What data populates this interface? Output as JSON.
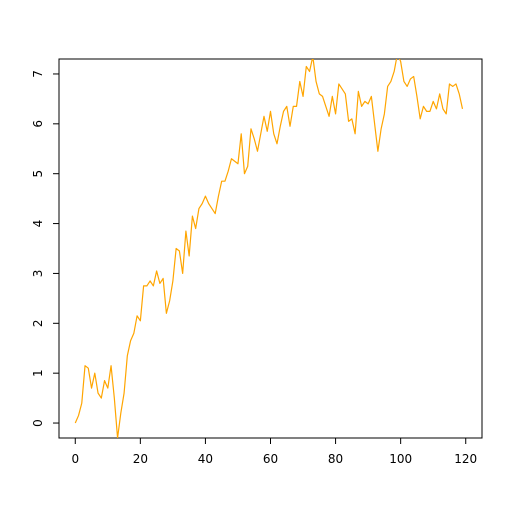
{
  "chart_data": {
    "type": "line",
    "title": "",
    "xlabel": "",
    "ylabel": "",
    "xlim": [
      -5,
      125
    ],
    "ylim": [
      -0.3,
      7.3
    ],
    "x_ticks": [
      0,
      20,
      40,
      60,
      80,
      100,
      120
    ],
    "x_tick_labels": [
      "0",
      "20",
      "40",
      "60",
      "80",
      "100",
      "120"
    ],
    "y_ticks": [
      0,
      1,
      2,
      3,
      4,
      5,
      6,
      7
    ],
    "y_tick_labels": [
      "0",
      "1",
      "2",
      "3",
      "4",
      "5",
      "6",
      "7"
    ],
    "grid": false,
    "series": [
      {
        "color": "#FFA500",
        "x": [
          0,
          1,
          2,
          3,
          4,
          5,
          6,
          7,
          8,
          9,
          10,
          11,
          12,
          13,
          14,
          15,
          16,
          17,
          18,
          19,
          20,
          21,
          22,
          23,
          24,
          25,
          26,
          27,
          28,
          29,
          30,
          31,
          32,
          33,
          34,
          35,
          36,
          37,
          38,
          39,
          40,
          41,
          42,
          43,
          44,
          45,
          46,
          47,
          48,
          49,
          50,
          51,
          52,
          53,
          54,
          55,
          56,
          57,
          58,
          59,
          60,
          61,
          62,
          63,
          64,
          65,
          66,
          67,
          68,
          69,
          70,
          71,
          72,
          73,
          74,
          75,
          76,
          77,
          78,
          79,
          80,
          81,
          82,
          83,
          84,
          85,
          86,
          87,
          88,
          89,
          90,
          91,
          92,
          93,
          94,
          95,
          96,
          97,
          98,
          99,
          100,
          101,
          102,
          103,
          104,
          105,
          106,
          107,
          108,
          109,
          110,
          111,
          112,
          113,
          114,
          115,
          116,
          117,
          118,
          119
        ],
        "y": [
          0,
          0.15,
          0.4,
          1.15,
          1.1,
          0.7,
          1.0,
          0.6,
          0.5,
          0.85,
          0.7,
          1.15,
          0.5,
          -0.3,
          0.2,
          0.6,
          1.35,
          1.65,
          1.8,
          2.15,
          2.05,
          2.75,
          2.75,
          2.85,
          2.75,
          3.05,
          2.8,
          2.9,
          2.2,
          2.45,
          2.85,
          3.5,
          3.45,
          3.0,
          3.85,
          3.35,
          4.15,
          3.9,
          4.3,
          4.4,
          4.55,
          4.4,
          4.3,
          4.2,
          4.55,
          4.85,
          4.85,
          5.05,
          5.3,
          5.25,
          5.2,
          5.8,
          5.0,
          5.15,
          5.9,
          5.7,
          5.45,
          5.8,
          6.15,
          5.85,
          6.25,
          5.8,
          5.6,
          5.95,
          6.25,
          6.35,
          5.95,
          6.35,
          6.35,
          6.85,
          6.55,
          7.15,
          7.05,
          7.35,
          6.85,
          6.6,
          6.55,
          6.35,
          6.15,
          6.55,
          6.2,
          6.8,
          6.7,
          6.6,
          6.05,
          6.1,
          5.8,
          6.65,
          6.35,
          6.45,
          6.4,
          6.55,
          6.0,
          5.45,
          5.9,
          6.2,
          6.75,
          6.85,
          7.05,
          7.4,
          7.25,
          6.85,
          6.75,
          6.9,
          6.95,
          6.55,
          6.1,
          6.35,
          6.25,
          6.25,
          6.45,
          6.3,
          6.6,
          6.3,
          6.2,
          6.8,
          6.75,
          6.8,
          6.6,
          6.3
        ]
      }
    ]
  }
}
